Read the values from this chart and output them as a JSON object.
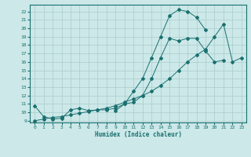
{
  "xlabel": "Humidex (Indice chaleur)",
  "bg_color": "#cce8e8",
  "line_color": "#1a7070",
  "grid_color": "#aacccc",
  "xlim": [
    -0.5,
    23.5
  ],
  "ylim": [
    8.8,
    22.8
  ],
  "yticks": [
    9,
    10,
    11,
    12,
    13,
    14,
    15,
    16,
    17,
    18,
    19,
    20,
    21,
    22
  ],
  "xticks": [
    0,
    1,
    2,
    3,
    4,
    5,
    6,
    7,
    8,
    9,
    10,
    11,
    12,
    13,
    14,
    15,
    16,
    17,
    18,
    19,
    20,
    21,
    22,
    23
  ],
  "series": [
    {
      "x": [
        0,
        1,
        2,
        3,
        4,
        5,
        6,
        7,
        8,
        9,
        10,
        11,
        12,
        13,
        14,
        15,
        16,
        17,
        18,
        19,
        20,
        21
      ],
      "y": [
        10.8,
        9.5,
        9.2,
        9.3,
        10.3,
        10.5,
        10.2,
        10.3,
        10.3,
        10.5,
        11.0,
        11.2,
        12.0,
        14.0,
        16.5,
        18.8,
        18.5,
        18.8,
        18.8,
        17.3,
        16.0,
        16.2
      ]
    },
    {
      "x": [
        9,
        10,
        11,
        12,
        13,
        14,
        15,
        16,
        17,
        18,
        19
      ],
      "y": [
        10.2,
        11.0,
        12.5,
        14.0,
        16.5,
        19.0,
        21.5,
        22.2,
        22.0,
        21.3,
        19.8
      ]
    },
    {
      "x": [
        0,
        1,
        2,
        3,
        4,
        5,
        6,
        7,
        8,
        9,
        10,
        11,
        12,
        13,
        14,
        15,
        16,
        17,
        18,
        19,
        20,
        21,
        22,
        23
      ],
      "y": [
        9.0,
        9.2,
        9.4,
        9.5,
        9.7,
        9.9,
        10.1,
        10.3,
        10.5,
        10.8,
        11.2,
        11.6,
        12.0,
        12.5,
        13.2,
        14.0,
        15.0,
        16.0,
        16.8,
        17.5,
        19.0,
        20.5,
        16.0,
        16.5
      ]
    }
  ]
}
